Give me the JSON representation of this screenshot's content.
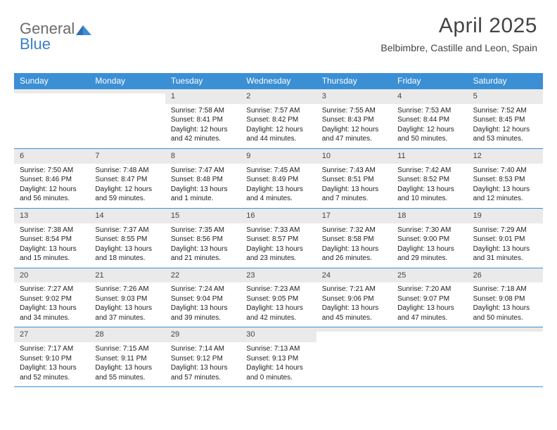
{
  "logo": {
    "text1": "General",
    "text2": "Blue"
  },
  "header": {
    "title": "April 2025",
    "subtitle": "Belbimbre, Castille and Leon, Spain"
  },
  "colors": {
    "header_bg": "#3b8fd4",
    "header_text": "#ffffff",
    "daynum_bg": "#eaeaea",
    "week_border": "#3b8fd4",
    "body_text": "#222222",
    "title_text": "#444444",
    "logo_gray": "#6b6b6b",
    "logo_blue": "#3b7fc4"
  },
  "typography": {
    "title_fontsize": 30,
    "subtitle_fontsize": 14,
    "dayhead_fontsize": 12,
    "daynum_fontsize": 11,
    "cell_fontsize": 10
  },
  "day_names": [
    "Sunday",
    "Monday",
    "Tuesday",
    "Wednesday",
    "Thursday",
    "Friday",
    "Saturday"
  ],
  "weeks": [
    [
      {
        "day": "",
        "lines": []
      },
      {
        "day": "",
        "lines": []
      },
      {
        "day": "1",
        "lines": [
          "Sunrise: 7:58 AM",
          "Sunset: 8:41 PM",
          "Daylight: 12 hours",
          "and 42 minutes."
        ]
      },
      {
        "day": "2",
        "lines": [
          "Sunrise: 7:57 AM",
          "Sunset: 8:42 PM",
          "Daylight: 12 hours",
          "and 44 minutes."
        ]
      },
      {
        "day": "3",
        "lines": [
          "Sunrise: 7:55 AM",
          "Sunset: 8:43 PM",
          "Daylight: 12 hours",
          "and 47 minutes."
        ]
      },
      {
        "day": "4",
        "lines": [
          "Sunrise: 7:53 AM",
          "Sunset: 8:44 PM",
          "Daylight: 12 hours",
          "and 50 minutes."
        ]
      },
      {
        "day": "5",
        "lines": [
          "Sunrise: 7:52 AM",
          "Sunset: 8:45 PM",
          "Daylight: 12 hours",
          "and 53 minutes."
        ]
      }
    ],
    [
      {
        "day": "6",
        "lines": [
          "Sunrise: 7:50 AM",
          "Sunset: 8:46 PM",
          "Daylight: 12 hours",
          "and 56 minutes."
        ]
      },
      {
        "day": "7",
        "lines": [
          "Sunrise: 7:48 AM",
          "Sunset: 8:47 PM",
          "Daylight: 12 hours",
          "and 59 minutes."
        ]
      },
      {
        "day": "8",
        "lines": [
          "Sunrise: 7:47 AM",
          "Sunset: 8:48 PM",
          "Daylight: 13 hours",
          "and 1 minute."
        ]
      },
      {
        "day": "9",
        "lines": [
          "Sunrise: 7:45 AM",
          "Sunset: 8:49 PM",
          "Daylight: 13 hours",
          "and 4 minutes."
        ]
      },
      {
        "day": "10",
        "lines": [
          "Sunrise: 7:43 AM",
          "Sunset: 8:51 PM",
          "Daylight: 13 hours",
          "and 7 minutes."
        ]
      },
      {
        "day": "11",
        "lines": [
          "Sunrise: 7:42 AM",
          "Sunset: 8:52 PM",
          "Daylight: 13 hours",
          "and 10 minutes."
        ]
      },
      {
        "day": "12",
        "lines": [
          "Sunrise: 7:40 AM",
          "Sunset: 8:53 PM",
          "Daylight: 13 hours",
          "and 12 minutes."
        ]
      }
    ],
    [
      {
        "day": "13",
        "lines": [
          "Sunrise: 7:38 AM",
          "Sunset: 8:54 PM",
          "Daylight: 13 hours",
          "and 15 minutes."
        ]
      },
      {
        "day": "14",
        "lines": [
          "Sunrise: 7:37 AM",
          "Sunset: 8:55 PM",
          "Daylight: 13 hours",
          "and 18 minutes."
        ]
      },
      {
        "day": "15",
        "lines": [
          "Sunrise: 7:35 AM",
          "Sunset: 8:56 PM",
          "Daylight: 13 hours",
          "and 21 minutes."
        ]
      },
      {
        "day": "16",
        "lines": [
          "Sunrise: 7:33 AM",
          "Sunset: 8:57 PM",
          "Daylight: 13 hours",
          "and 23 minutes."
        ]
      },
      {
        "day": "17",
        "lines": [
          "Sunrise: 7:32 AM",
          "Sunset: 8:58 PM",
          "Daylight: 13 hours",
          "and 26 minutes."
        ]
      },
      {
        "day": "18",
        "lines": [
          "Sunrise: 7:30 AM",
          "Sunset: 9:00 PM",
          "Daylight: 13 hours",
          "and 29 minutes."
        ]
      },
      {
        "day": "19",
        "lines": [
          "Sunrise: 7:29 AM",
          "Sunset: 9:01 PM",
          "Daylight: 13 hours",
          "and 31 minutes."
        ]
      }
    ],
    [
      {
        "day": "20",
        "lines": [
          "Sunrise: 7:27 AM",
          "Sunset: 9:02 PM",
          "Daylight: 13 hours",
          "and 34 minutes."
        ]
      },
      {
        "day": "21",
        "lines": [
          "Sunrise: 7:26 AM",
          "Sunset: 9:03 PM",
          "Daylight: 13 hours",
          "and 37 minutes."
        ]
      },
      {
        "day": "22",
        "lines": [
          "Sunrise: 7:24 AM",
          "Sunset: 9:04 PM",
          "Daylight: 13 hours",
          "and 39 minutes."
        ]
      },
      {
        "day": "23",
        "lines": [
          "Sunrise: 7:23 AM",
          "Sunset: 9:05 PM",
          "Daylight: 13 hours",
          "and 42 minutes."
        ]
      },
      {
        "day": "24",
        "lines": [
          "Sunrise: 7:21 AM",
          "Sunset: 9:06 PM",
          "Daylight: 13 hours",
          "and 45 minutes."
        ]
      },
      {
        "day": "25",
        "lines": [
          "Sunrise: 7:20 AM",
          "Sunset: 9:07 PM",
          "Daylight: 13 hours",
          "and 47 minutes."
        ]
      },
      {
        "day": "26",
        "lines": [
          "Sunrise: 7:18 AM",
          "Sunset: 9:08 PM",
          "Daylight: 13 hours",
          "and 50 minutes."
        ]
      }
    ],
    [
      {
        "day": "27",
        "lines": [
          "Sunrise: 7:17 AM",
          "Sunset: 9:10 PM",
          "Daylight: 13 hours",
          "and 52 minutes."
        ]
      },
      {
        "day": "28",
        "lines": [
          "Sunrise: 7:15 AM",
          "Sunset: 9:11 PM",
          "Daylight: 13 hours",
          "and 55 minutes."
        ]
      },
      {
        "day": "29",
        "lines": [
          "Sunrise: 7:14 AM",
          "Sunset: 9:12 PM",
          "Daylight: 13 hours",
          "and 57 minutes."
        ]
      },
      {
        "day": "30",
        "lines": [
          "Sunrise: 7:13 AM",
          "Sunset: 9:13 PM",
          "Daylight: 14 hours",
          "and 0 minutes."
        ]
      },
      {
        "day": "",
        "lines": []
      },
      {
        "day": "",
        "lines": []
      },
      {
        "day": "",
        "lines": []
      }
    ]
  ]
}
